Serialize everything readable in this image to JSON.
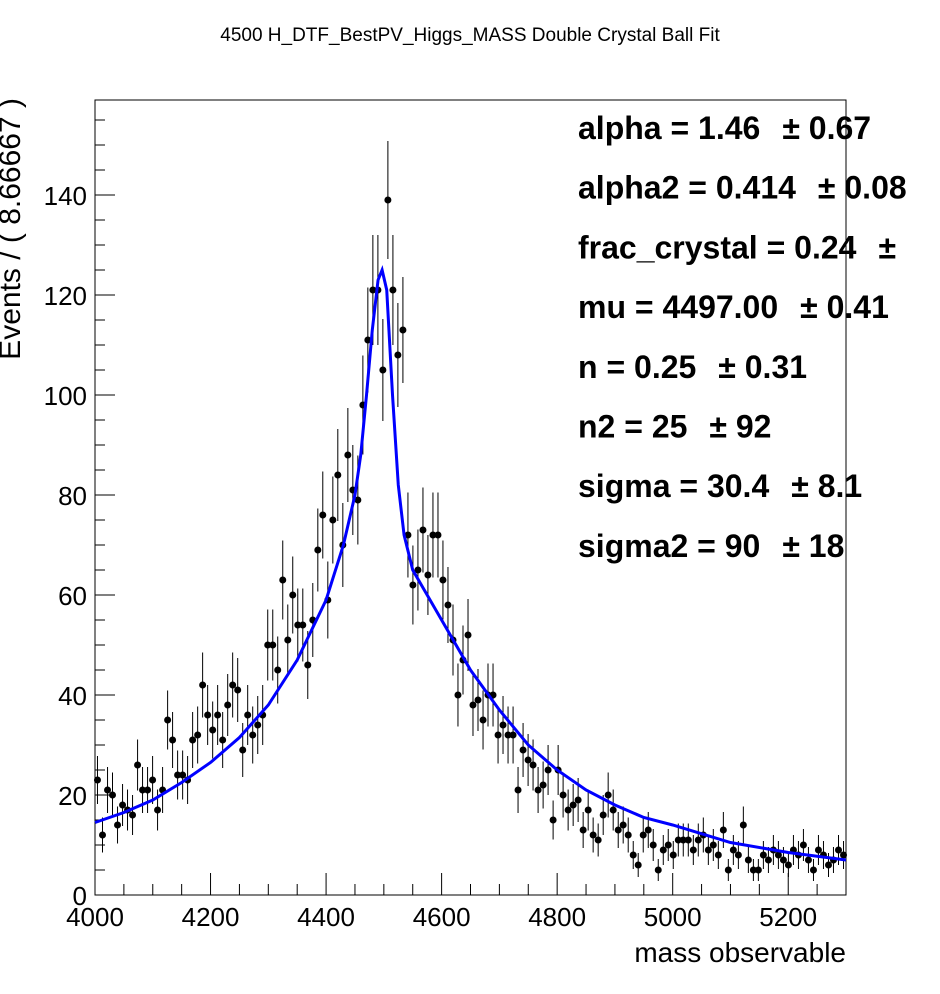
{
  "chart_data": {
    "type": "scatter",
    "title": "4500 H_DTF_BestPV_Higgs_MASS Double Crystal Ball Fit",
    "x_label": "mass observable",
    "y_label": "Events / ( 8.66667 )",
    "xlim": [
      4000,
      5300
    ],
    "ylim": [
      0,
      159
    ],
    "xticks": [
      4000,
      4200,
      4400,
      4600,
      4800,
      5000,
      5200
    ],
    "yticks": [
      0,
      20,
      40,
      60,
      80,
      100,
      120,
      140
    ],
    "points": {
      "color": "#000000",
      "x": [
        4004.3,
        4013,
        4021.7,
        4030.3,
        4039,
        4047.7,
        4056.3,
        4065,
        4073.7,
        4082.3,
        4091,
        4099.7,
        4108.3,
        4117,
        4125.7,
        4134.3,
        4143,
        4151.7,
        4160.3,
        4169,
        4177.7,
        4186.3,
        4195,
        4203.7,
        4212.3,
        4221,
        4229.7,
        4238.3,
        4247,
        4255.7,
        4264.3,
        4273,
        4281.7,
        4290.3,
        4299,
        4307.7,
        4316.3,
        4325,
        4333.7,
        4342.3,
        4351,
        4359.7,
        4368.3,
        4377,
        4385.7,
        4394.3,
        4403,
        4411.7,
        4420.3,
        4429,
        4437.7,
        4446.3,
        4455,
        4463.7,
        4472.3,
        4481,
        4489.7,
        4498.3,
        4507,
        4515.7,
        4524.3,
        4533,
        4541.7,
        4550.3,
        4559,
        4567.7,
        4576.3,
        4585,
        4593.7,
        4602.3,
        4611,
        4619.7,
        4628.3,
        4637,
        4645.7,
        4654.3,
        4663,
        4671.7,
        4680.3,
        4689,
        4697.7,
        4706.3,
        4715,
        4723.7,
        4732.3,
        4741,
        4749.7,
        4758.3,
        4767,
        4775.7,
        4784.3,
        4793,
        4801.7,
        4810.3,
        4819,
        4827.7,
        4836.3,
        4845,
        4853.7,
        4862.3,
        4871,
        4879.7,
        4888.3,
        4897,
        4905.7,
        4914.3,
        4923,
        4931.7,
        4940.3,
        4949,
        4957.7,
        4966.3,
        4975,
        4983.7,
        4992.3,
        5001,
        5009.7,
        5018.3,
        5027,
        5035.7,
        5044.3,
        5053,
        5061.7,
        5070.3,
        5079,
        5087.7,
        5096.3,
        5105,
        5113.7,
        5122.3,
        5131,
        5139.7,
        5148.3,
        5157,
        5165.7,
        5174.3,
        5183,
        5191.7,
        5200.3,
        5209,
        5217.7,
        5226.3,
        5235,
        5243.7,
        5252.3,
        5261,
        5269.7,
        5278.3,
        5287,
        5295.7
      ],
      "values": [
        23,
        12,
        21,
        20,
        14,
        18,
        17,
        16,
        26,
        21,
        21,
        23,
        17,
        21,
        35,
        31,
        24,
        24,
        23,
        31,
        32,
        42,
        36,
        33,
        36,
        31,
        38,
        42,
        41,
        29,
        36,
        32,
        34,
        36,
        50,
        50,
        45,
        63,
        51,
        60,
        54,
        54,
        46,
        55,
        69,
        76,
        59,
        75,
        84,
        70,
        88,
        81,
        79,
        98,
        111,
        121,
        121,
        105,
        139,
        121,
        108,
        113,
        72,
        62,
        65,
        73,
        64,
        72,
        72,
        63,
        58,
        51,
        40,
        47,
        52,
        38,
        39,
        35,
        40,
        40,
        32,
        34,
        32,
        32,
        21,
        29,
        27,
        26,
        21,
        22,
        25,
        15,
        25,
        20,
        17,
        18,
        19,
        13,
        17,
        12,
        11,
        16,
        20,
        17,
        13,
        14,
        12,
        8,
        6,
        12,
        13,
        10,
        5,
        9,
        10,
        8,
        11,
        11,
        11,
        9,
        11,
        12,
        9,
        10,
        8,
        13,
        5,
        9,
        8,
        14,
        7,
        5,
        5,
        8,
        7,
        9,
        8,
        7,
        6,
        9,
        8,
        10,
        7,
        5,
        9,
        8,
        6,
        7,
        9,
        8
      ],
      "errors": [
        4.8,
        3.5,
        4.6,
        4.5,
        3.7,
        4.2,
        4.1,
        4.0,
        5.1,
        4.6,
        4.6,
        4.8,
        4.1,
        4.6,
        5.9,
        5.6,
        4.9,
        4.9,
        4.8,
        5.6,
        5.7,
        6.5,
        6.0,
        5.7,
        6.0,
        5.6,
        6.2,
        6.5,
        6.4,
        5.4,
        6.0,
        5.7,
        5.8,
        6.0,
        7.1,
        7.1,
        6.7,
        7.9,
        7.1,
        7.7,
        7.3,
        7.3,
        6.8,
        7.4,
        8.3,
        8.7,
        7.7,
        8.7,
        9.2,
        8.4,
        9.4,
        9.0,
        8.9,
        9.9,
        10.5,
        11.0,
        11.0,
        10.2,
        11.8,
        11.0,
        10.4,
        10.6,
        8.5,
        7.9,
        8.1,
        8.5,
        8.0,
        8.5,
        8.5,
        7.9,
        7.6,
        7.1,
        6.3,
        6.9,
        7.2,
        6.2,
        6.2,
        5.9,
        6.3,
        6.3,
        5.7,
        5.8,
        5.7,
        5.7,
        4.6,
        5.4,
        5.2,
        5.1,
        4.6,
        4.7,
        5.0,
        3.9,
        5.0,
        4.5,
        4.1,
        4.2,
        4.4,
        3.6,
        4.1,
        3.5,
        3.3,
        4.0,
        4.5,
        4.1,
        3.6,
        3.7,
        3.5,
        2.8,
        2.4,
        3.5,
        3.6,
        3.2,
        2.2,
        3.0,
        3.2,
        2.8,
        3.3,
        3.3,
        3.3,
        3.0,
        3.3,
        3.5,
        3.0,
        3.2,
        2.8,
        3.6,
        2.2,
        3.0,
        2.8,
        3.7,
        2.6,
        2.2,
        2.2,
        2.8,
        2.6,
        3.0,
        2.8,
        2.6,
        2.4,
        3.0,
        2.8,
        3.2,
        2.6,
        2.2,
        3.0,
        2.8,
        2.4,
        2.6,
        3.0,
        2.8
      ]
    },
    "fit": {
      "color": "#0000ff",
      "x": [
        4000,
        4050,
        4100,
        4150,
        4200,
        4250,
        4300,
        4350,
        4400,
        4430,
        4450,
        4460,
        4470,
        4480,
        4490,
        4497,
        4505,
        4515,
        4525,
        4535,
        4550,
        4575,
        4600,
        4650,
        4700,
        4750,
        4800,
        4850,
        4900,
        4950,
        5000,
        5100,
        5200,
        5300
      ],
      "values": [
        14.5,
        16.5,
        19,
        22.5,
        26.5,
        31.5,
        38,
        47,
        59,
        70,
        80,
        88,
        100,
        113,
        123,
        125,
        121,
        100,
        82,
        72,
        65,
        60,
        55,
        45,
        37,
        30,
        25,
        21,
        18,
        15.5,
        14,
        10.5,
        8.5,
        7
      ]
    },
    "params": [
      [
        "alpha =  1.46",
        "± 0.67"
      ],
      [
        "alpha2 =  0.414",
        "± 0.08"
      ],
      [
        "frac_crystal =  0.24",
        "±"
      ],
      [
        "mu =  4497.00",
        "± 0.41"
      ],
      [
        "n =  0.25",
        "± 0.31"
      ],
      [
        "n2 =  25",
        "± 92"
      ],
      [
        "sigma =  30.4",
        "± 8.1"
      ],
      [
        "sigma2 =  90",
        "± 18"
      ]
    ]
  }
}
